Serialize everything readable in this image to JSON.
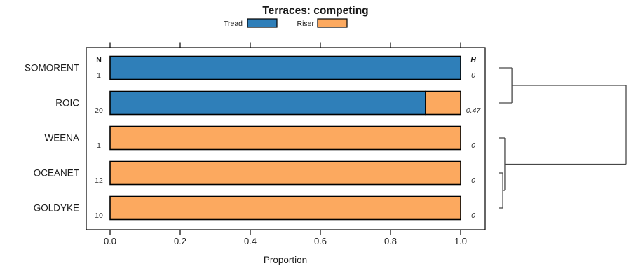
{
  "title": "Terraces: competing",
  "xlabel": "Proportion",
  "columns": {
    "n_label": "N",
    "h_label": "H"
  },
  "legend": {
    "items": [
      {
        "label": "Tread",
        "color": "#2F7FB9"
      },
      {
        "label": "Riser",
        "color": "#FCA95F"
      }
    ]
  },
  "chart_data": {
    "type": "bar",
    "orientation": "horizontal",
    "stacked": true,
    "title": "Terraces: competing",
    "categories": [
      "SOMORENT",
      "ROIC",
      "WEENA",
      "OCEANET",
      "GOLDYKE"
    ],
    "series": [
      {
        "name": "Tread",
        "color": "#2F7FB9",
        "values": [
          1.0,
          0.9,
          0.0,
          0.0,
          0.0
        ]
      },
      {
        "name": "Riser",
        "color": "#FCA95F",
        "values": [
          0.0,
          0.1,
          1.0,
          1.0,
          1.0
        ]
      }
    ],
    "n_values": [
      "1",
      "20",
      "1",
      "12",
      "10"
    ],
    "h_values": [
      "0",
      "0.47",
      "0",
      "0",
      "0"
    ],
    "xlabel": "Proportion",
    "xlim": [
      0.0,
      1.0
    ],
    "xticks": [
      "0.0",
      "0.2",
      "0.4",
      "0.6",
      "0.8",
      "1.0"
    ],
    "grid": false,
    "legend_position": "top",
    "dendrogram": {
      "leaf_order": [
        "SOMORENT",
        "ROIC",
        "WEENA",
        "OCEANET",
        "GOLDYKE"
      ],
      "merges": [
        {
          "a": "leaf:0",
          "b": "leaf:1",
          "height": 0.1
        },
        {
          "a": "leaf:3",
          "b": "leaf:4",
          "height": 0.028
        },
        {
          "a": "leaf:2",
          "b": "merge:1",
          "height": 0.044
        },
        {
          "a": "merge:0",
          "b": "merge:2",
          "height": 1.0
        }
      ]
    }
  }
}
